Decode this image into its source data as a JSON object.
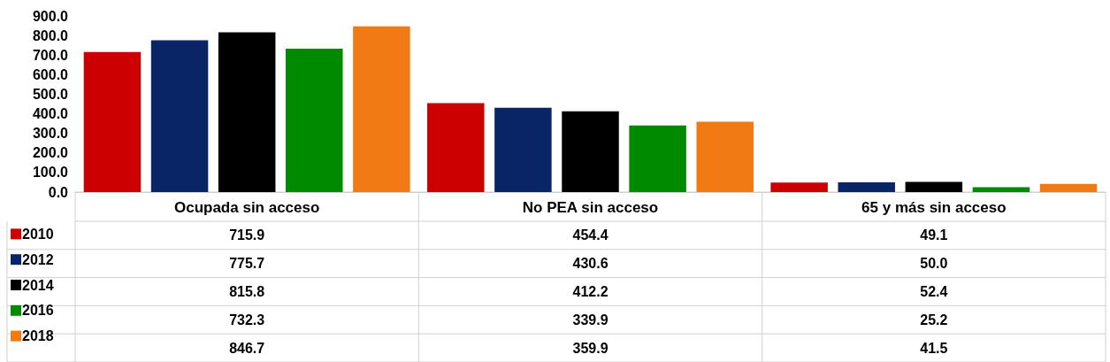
{
  "chart_data": {
    "type": "bar",
    "categories": [
      "Ocupada sin acceso",
      "No PEA sin acceso",
      "65 y más sin acceso"
    ],
    "series": [
      {
        "name": "2010",
        "color": "#cc0000",
        "values": [
          715.9,
          454.4,
          49.1
        ],
        "value_labels": [
          "715.9",
          "454.4",
          "49.1"
        ]
      },
      {
        "name": "2012",
        "color": "#0a2566",
        "values": [
          775.7,
          430.6,
          50.0
        ],
        "value_labels": [
          "775.7",
          "430.6",
          "50.0"
        ]
      },
      {
        "name": "2014",
        "color": "#000000",
        "values": [
          815.8,
          412.2,
          52.4
        ],
        "value_labels": [
          "815.8",
          "412.2",
          "52.4"
        ]
      },
      {
        "name": "2016",
        "color": "#008a00",
        "values": [
          732.3,
          339.9,
          25.2
        ],
        "value_labels": [
          "732.3",
          "339.9",
          "25.2"
        ]
      },
      {
        "name": "2018",
        "color": "#f27a14",
        "values": [
          846.7,
          359.9,
          41.5
        ],
        "value_labels": [
          "846.7",
          "359.9",
          "41.5"
        ]
      }
    ],
    "ylim": [
      0,
      900
    ],
    "yticks": [
      {
        "value": 0,
        "label": "0.0"
      },
      {
        "value": 100,
        "label": "100.0"
      },
      {
        "value": 200,
        "label": "200.0"
      },
      {
        "value": 300,
        "label": "300.0"
      },
      {
        "value": 400,
        "label": "400.0"
      },
      {
        "value": 500,
        "label": "500.0"
      },
      {
        "value": 600,
        "label": "600.0"
      },
      {
        "value": 700,
        "label": "700.0"
      },
      {
        "value": 800,
        "label": "800.0"
      },
      {
        "value": 900,
        "label": "900.0"
      }
    ],
    "grid": false,
    "legend": "bottom left"
  }
}
